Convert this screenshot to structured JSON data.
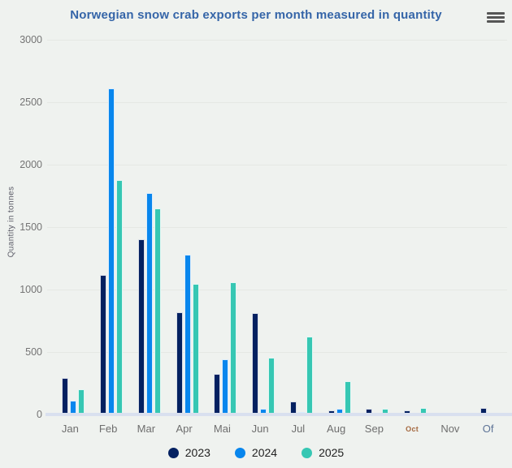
{
  "header": {
    "title": "Norwegian snow crab exports per month measured in quantity",
    "menu_icon": "hamburger-icon"
  },
  "colors": {
    "background": "#eff2ef",
    "title": "#3565a8",
    "grid": "#e5e8e4",
    "axis_band": "#d9e0ef",
    "tick_label": "#747474",
    "x_label": "#6e6e6e",
    "oct_label": "#a4683f",
    "of_label": "#5d7396",
    "series_2023": "#042161",
    "series_2024": "#0886ed",
    "series_2025": "#36c7b3"
  },
  "chart_data": {
    "type": "bar",
    "title": "Norwegian snow crab exports per month measured in quantity",
    "xlabel": "",
    "ylabel": "Quantity in tonnes",
    "ylim": [
      0,
      3000
    ],
    "yticks": [
      0,
      500,
      1000,
      1500,
      2000,
      2500,
      3000
    ],
    "grid": true,
    "legend_position": "bottom",
    "categories": [
      "Jan",
      "Feb",
      "Mar",
      "Apr",
      "Mai",
      "Jun",
      "Jul",
      "Aug",
      "Sep",
      "Oct",
      "Nov",
      "Of"
    ],
    "series": [
      {
        "name": "2023",
        "color": "#042161",
        "values": [
          290,
          1120,
          1400,
          820,
          325,
          815,
          105,
          30,
          45,
          30,
          0,
          50
        ]
      },
      {
        "name": "2024",
        "color": "#0886ed",
        "values": [
          110,
          2610,
          1770,
          1280,
          440,
          45,
          20,
          45,
          10,
          8,
          10,
          0
        ]
      },
      {
        "name": "2025",
        "color": "#36c7b3",
        "values": [
          200,
          1880,
          1650,
          1045,
          1060,
          455,
          625,
          265,
          45,
          50,
          8,
          0
        ]
      }
    ]
  }
}
